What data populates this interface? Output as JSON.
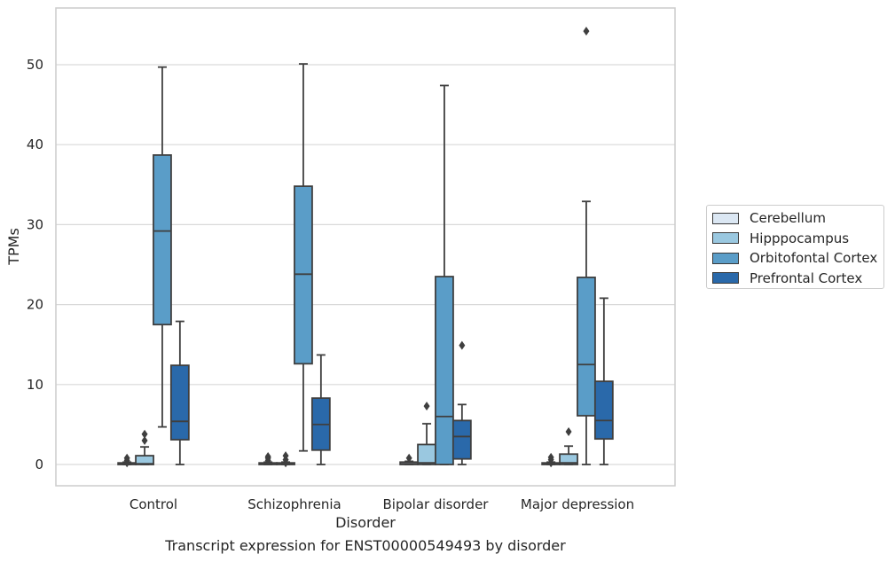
{
  "caption": "Transcript expression for ENST00000549493 by disorder",
  "chart_data": {
    "type": "box",
    "xlabel": "Disorder",
    "ylabel": "TPMs",
    "ylim": [
      -2.5,
      57
    ],
    "yticks": [
      0,
      10,
      20,
      30,
      40,
      50
    ],
    "grid": true,
    "legend_position": "right",
    "categories": [
      "Control",
      "Schizophrenia",
      "Bipolar disorder",
      "Major depression"
    ],
    "series": [
      {
        "name": "Cerebellum",
        "color": "#dbe7f3",
        "boxes": [
          {
            "q1": 0,
            "median": 0.1,
            "q3": 0.2,
            "whisker_low": 0,
            "whisker_high": 0.3,
            "outliers": [
              0.2,
              0.5,
              0.8
            ]
          },
          {
            "q1": 0,
            "median": 0.1,
            "q3": 0.2,
            "whisker_low": 0,
            "whisker_high": 0.3,
            "outliers": [
              0.5,
              0.8,
              1.0
            ]
          },
          {
            "q1": 0,
            "median": 0.1,
            "q3": 0.3,
            "whisker_low": 0,
            "whisker_high": 0.4,
            "outliers": [
              0.8
            ]
          },
          {
            "q1": 0,
            "median": 0.1,
            "q3": 0.2,
            "whisker_low": 0,
            "whisker_high": 0.3,
            "outliers": [
              0.2,
              0.6,
              0.9
            ]
          }
        ]
      },
      {
        "name": "Hipppocampus",
        "color": "#9ac8e0",
        "boxes": [
          {
            "q1": 0,
            "median": 0.1,
            "q3": 1.1,
            "whisker_low": 0,
            "whisker_high": 2.2,
            "outliers": [
              3.0,
              3.8
            ]
          },
          {
            "q1": 0,
            "median": 0.1,
            "q3": 0.2,
            "whisker_low": 0,
            "whisker_high": 0.3,
            "outliers": [
              0.2,
              0.6,
              1.1
            ]
          },
          {
            "q1": 0,
            "median": 0.2,
            "q3": 2.5,
            "whisker_low": 0,
            "whisker_high": 5.1,
            "outliers": [
              7.3
            ]
          },
          {
            "q1": 0,
            "median": 0.2,
            "q3": 1.3,
            "whisker_low": 0,
            "whisker_high": 2.3,
            "outliers": [
              4.1
            ]
          }
        ]
      },
      {
        "name": "Orbitofontal Cortex",
        "color": "#5a9dc8",
        "boxes": [
          {
            "q1": 17.5,
            "median": 29.2,
            "q3": 38.7,
            "whisker_low": 4.7,
            "whisker_high": 49.7,
            "outliers": []
          },
          {
            "q1": 12.6,
            "median": 23.8,
            "q3": 34.8,
            "whisker_low": 1.7,
            "whisker_high": 50.1,
            "outliers": []
          },
          {
            "q1": 0,
            "median": 6.0,
            "q3": 23.5,
            "whisker_low": 0,
            "whisker_high": 47.4,
            "outliers": []
          },
          {
            "q1": 6.1,
            "median": 12.5,
            "q3": 23.4,
            "whisker_low": 0,
            "whisker_high": 32.9,
            "outliers": [
              54.2
            ]
          }
        ]
      },
      {
        "name": "Prefrontal Cortex",
        "color": "#2a69aa",
        "boxes": [
          {
            "q1": 3.1,
            "median": 5.4,
            "q3": 12.4,
            "whisker_low": 0,
            "whisker_high": 17.9,
            "outliers": []
          },
          {
            "q1": 1.8,
            "median": 5.0,
            "q3": 8.3,
            "whisker_low": 0,
            "whisker_high": 13.7,
            "outliers": []
          },
          {
            "q1": 0.7,
            "median": 3.5,
            "q3": 5.5,
            "whisker_low": 0,
            "whisker_high": 7.5,
            "outliers": [
              14.9
            ]
          },
          {
            "q1": 3.2,
            "median": 5.5,
            "q3": 10.4,
            "whisker_low": 0,
            "whisker_high": 20.8,
            "outliers": []
          }
        ]
      }
    ]
  }
}
